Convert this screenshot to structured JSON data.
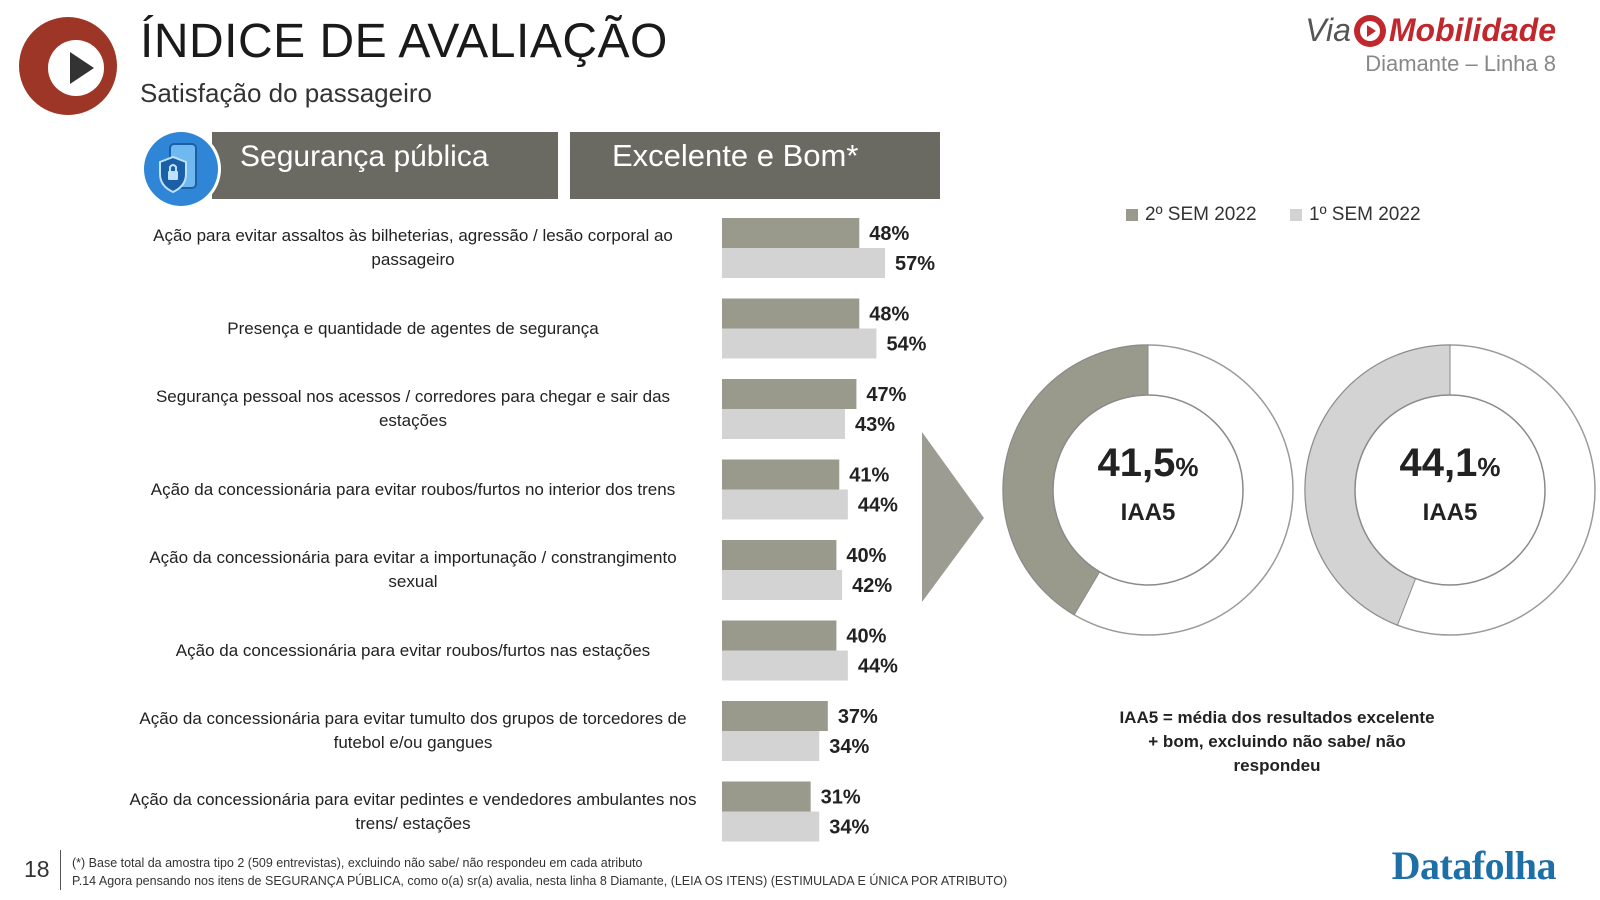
{
  "header": {
    "title": "ÍNDICE DE AVALIAÇÃO",
    "subtitle": "Satisfação do passageiro",
    "brand_via": "Via",
    "brand_mobilidade": "Mobilidade",
    "brand_line": "Diamante – Linha 8"
  },
  "section": {
    "label": "Segurança pública",
    "metric_label": "Excelente e Bom*"
  },
  "colors": {
    "series_2sem": "#9a9a8c",
    "series_1sem": "#d3d3d3",
    "header_bg": "#6a6a62",
    "brand_red": "#c0282d",
    "datafolha_blue": "#1d6fa8"
  },
  "chart_data": [
    {
      "type": "bar",
      "orientation": "horizontal",
      "categories": [
        "Ação para evitar assaltos às bilheterias, agressão / lesão corporal ao passageiro",
        "Presença e quantidade de agentes de segurança",
        "Segurança pessoal nos acessos / corredores para chegar e sair das estações",
        "Ação da concessionária para evitar roubos/furtos no interior dos trens",
        "Ação da concessionária para evitar a importunação / constrangimento sexual",
        "Ação da concessionária para evitar roubos/furtos nas estações",
        "Ação da concessionária para evitar tumulto dos grupos de torcedores de futebol e/ou gangues",
        "Ação da concessionária para evitar pedintes e vendedores ambulantes nos trens/ estações"
      ],
      "series": [
        {
          "name": "2º SEM 2022",
          "values": [
            48,
            48,
            47,
            41,
            40,
            40,
            37,
            31
          ],
          "labels": [
            "48%",
            "48%",
            "47%",
            "41%",
            "40%",
            "40%",
            "37%",
            "31%"
          ]
        },
        {
          "name": "1º SEM 2022",
          "values": [
            57,
            54,
            43,
            44,
            42,
            44,
            34,
            34
          ],
          "labels": [
            "57%",
            "54%",
            "43%",
            "44%",
            "42%",
            "44%",
            "34%",
            "34%"
          ]
        }
      ],
      "legend": "top-right",
      "grid": false
    },
    {
      "type": "pie",
      "variant": "donut",
      "series_name": "2º SEM 2022",
      "value": 41.5,
      "value_label": "41,5",
      "unit": "%",
      "label": "IAA5"
    },
    {
      "type": "pie",
      "variant": "donut",
      "series_name": "1º SEM 2022",
      "value": 44.1,
      "value_label": "44,1",
      "unit": "%",
      "label": "IAA5"
    }
  ],
  "iaa_note": "IAA5 = média dos resultados excelente + bom, excluindo não sabe/ não respondeu",
  "footer": {
    "page_number": "18",
    "note1": "(*) Base total da amostra tipo 2 (509 entrevistas), excluindo não sabe/ não respondeu em cada atributo",
    "note2": "P.14 Agora pensando nos itens de SEGURANÇA PÚBLICA, como o(a) sr(a) avalia, nesta linha 8 Diamante, (LEIA OS ITENS) (ESTIMULADA E ÚNICA POR ATRIBUTO)",
    "datafolha": "Datafolha"
  }
}
